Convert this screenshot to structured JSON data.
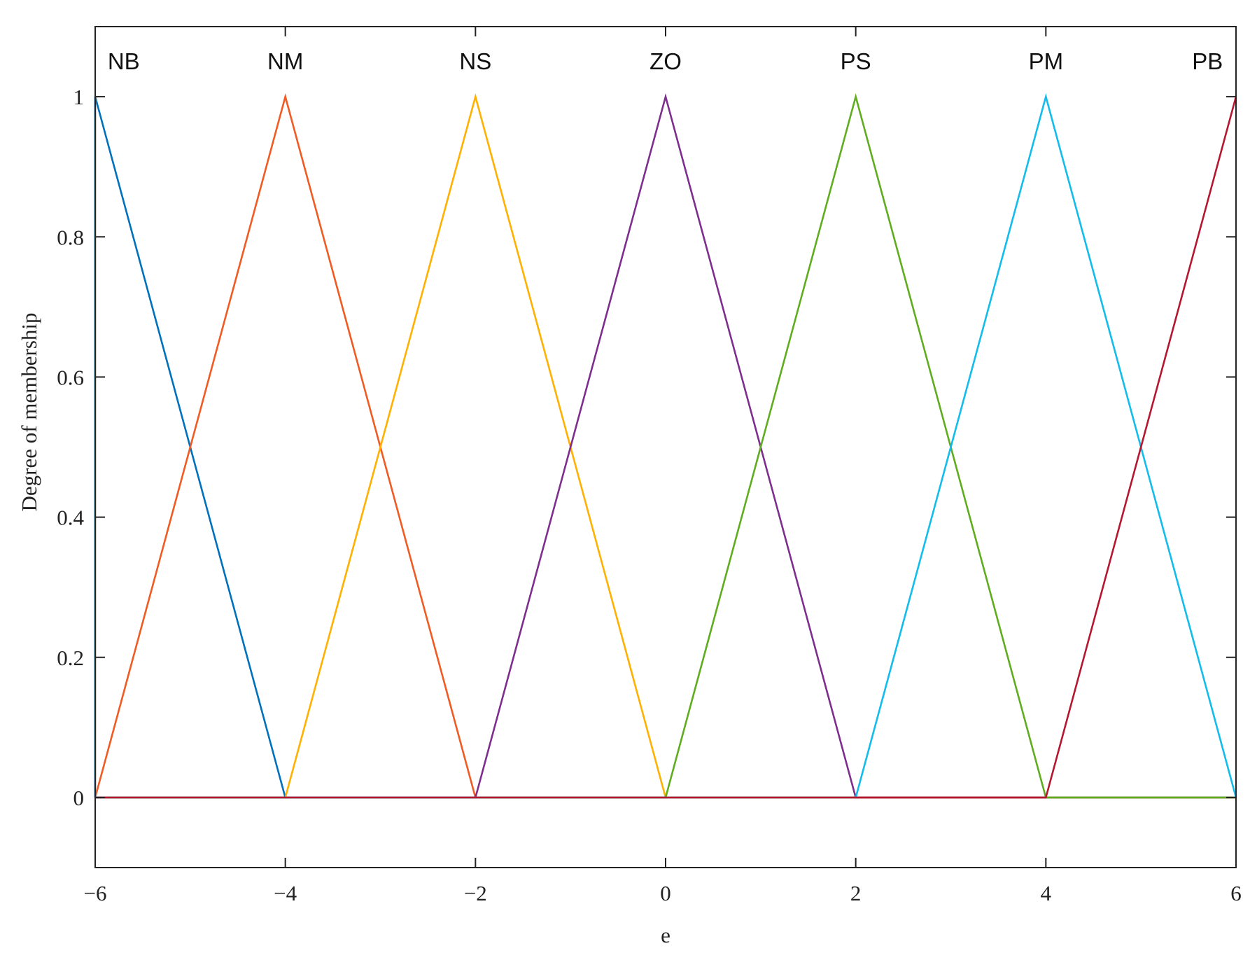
{
  "chart_data": {
    "type": "line",
    "title": "",
    "xlabel": "e",
    "ylabel": "Degree of membership",
    "xlim": [
      -6,
      6
    ],
    "ylim": [
      -0.1,
      1.1
    ],
    "x_ticks": [
      -6,
      -4,
      -2,
      0,
      2,
      4,
      6
    ],
    "x_tick_labels": [
      "−6",
      "−4",
      "−2",
      "0",
      "2",
      "4",
      "6"
    ],
    "y_ticks": [
      0,
      0.2,
      0.4,
      0.6,
      0.8,
      1
    ],
    "y_tick_labels": [
      "0",
      "0.2",
      "0.4",
      "0.6",
      "0.8",
      "1"
    ],
    "grid": false,
    "series": [
      {
        "name": "NB",
        "color": "#0072BD",
        "x": [
          -6,
          -6,
          -4,
          6
        ],
        "y": [
          0,
          1,
          0,
          0
        ]
      },
      {
        "name": "NM",
        "color": "#F15A22",
        "x": [
          -6,
          -4,
          -2,
          6
        ],
        "y": [
          0,
          1,
          0,
          0
        ]
      },
      {
        "name": "NS",
        "color": "#FFB000",
        "x": [
          -6,
          -4,
          -2,
          0,
          6
        ],
        "y": [
          0,
          0,
          1,
          0,
          0
        ]
      },
      {
        "name": "ZO",
        "color": "#7E2F8E",
        "x": [
          -6,
          -2,
          0,
          2,
          6
        ],
        "y": [
          0,
          0,
          1,
          0,
          0
        ]
      },
      {
        "name": "PS",
        "color": "#5FAD1E",
        "x": [
          -6,
          0,
          2,
          4,
          6
        ],
        "y": [
          0,
          0,
          1,
          0,
          0
        ]
      },
      {
        "name": "PM",
        "color": "#12BCEB",
        "x": [
          -6,
          2,
          4,
          6,
          6
        ],
        "y": [
          0,
          0,
          1,
          0,
          0
        ]
      },
      {
        "name": "PB",
        "color": "#B5172F",
        "x": [
          -6,
          4,
          6,
          6
        ],
        "y": [
          0,
          0,
          1,
          1
        ]
      }
    ],
    "labels": [
      {
        "text": "NB",
        "x": -5.7
      },
      {
        "text": "NM",
        "x": -4
      },
      {
        "text": "NS",
        "x": -2
      },
      {
        "text": "ZO",
        "x": 0
      },
      {
        "text": "PS",
        "x": 2
      },
      {
        "text": "PM",
        "x": 4
      },
      {
        "text": "PB",
        "x": 5.7
      }
    ]
  }
}
